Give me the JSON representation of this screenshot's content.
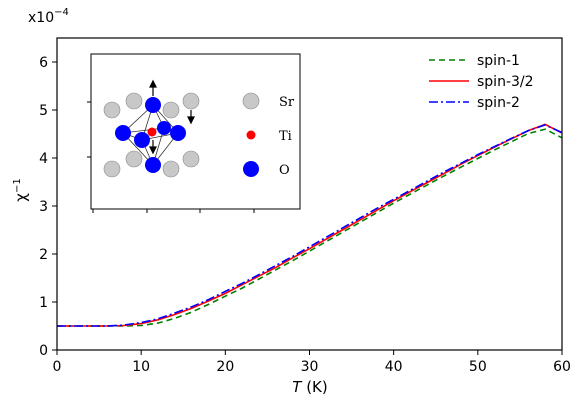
{
  "chart_data": {
    "type": "line",
    "title": "",
    "xlabel_italic": "T",
    "xlabel_unit": " (K)",
    "ylabel_base": "χ",
    "ylabel_exp": "−1",
    "y_offset_base": "x10",
    "y_offset_exp": "−4",
    "xlim": [
      0,
      60
    ],
    "ylim": [
      0,
      6.5
    ],
    "xticks": [
      0,
      10,
      20,
      30,
      40,
      50,
      60
    ],
    "yticks": [
      0,
      1,
      2,
      3,
      4,
      5,
      6
    ],
    "grid": false,
    "legend_position": "top-right",
    "x": [
      0,
      2,
      4,
      6,
      8,
      10,
      12,
      14,
      16,
      18,
      20,
      22,
      24,
      26,
      28,
      30,
      32,
      34,
      36,
      38,
      40,
      42,
      44,
      46,
      48,
      50,
      52,
      54,
      56,
      58,
      60
    ],
    "series": [
      {
        "name": "spin-1",
        "color": "#008000",
        "dash": "6,4",
        "values": [
          0.5,
          0.5,
          0.5,
          0.5,
          0.5,
          0.51,
          0.56,
          0.66,
          0.79,
          0.95,
          1.12,
          1.29,
          1.48,
          1.67,
          1.86,
          2.06,
          2.26,
          2.46,
          2.66,
          2.86,
          3.06,
          3.25,
          3.44,
          3.63,
          3.81,
          3.99,
          4.17,
          4.34,
          4.51,
          4.6,
          4.42
        ]
      },
      {
        "name": "spin-3/2",
        "color": "#ff0000",
        "dash": "",
        "values": [
          0.5,
          0.5,
          0.5,
          0.5,
          0.51,
          0.55,
          0.63,
          0.74,
          0.87,
          1.02,
          1.18,
          1.36,
          1.54,
          1.72,
          1.92,
          2.11,
          2.31,
          2.51,
          2.71,
          2.91,
          3.11,
          3.3,
          3.49,
          3.68,
          3.87,
          4.05,
          4.23,
          4.4,
          4.57,
          4.7,
          4.52
        ]
      },
      {
        "name": "spin-2",
        "color": "#0000ff",
        "dash": "9,3,2,3",
        "values": [
          0.5,
          0.5,
          0.5,
          0.5,
          0.52,
          0.57,
          0.65,
          0.77,
          0.9,
          1.05,
          1.22,
          1.39,
          1.57,
          1.76,
          1.95,
          2.15,
          2.35,
          2.55,
          2.75,
          2.95,
          3.14,
          3.33,
          3.52,
          3.71,
          3.89,
          4.07,
          4.24,
          4.41,
          4.57,
          4.69,
          4.53
        ]
      }
    ],
    "inset": {
      "legend": [
        {
          "label": "Sr",
          "color": "#c8c8c8"
        },
        {
          "label": "Ti",
          "color": "#ff0000"
        },
        {
          "label": "O",
          "color": "#0000ff"
        }
      ]
    }
  }
}
